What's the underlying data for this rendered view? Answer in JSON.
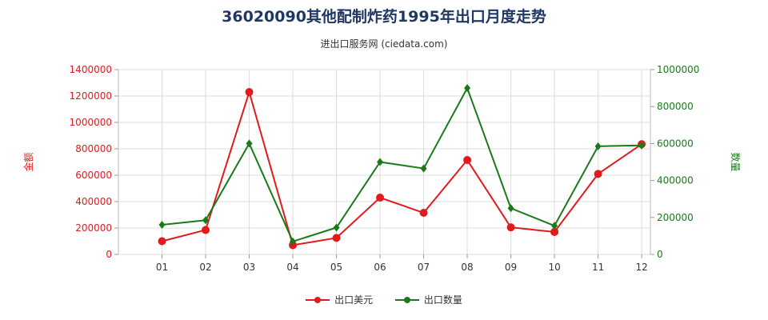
{
  "chart_data": {
    "type": "line",
    "title": "36020090其他配制炸药1995年出口月度走势",
    "subtitle": "进出口服务网 (ciedata.com)",
    "categories": [
      "01",
      "02",
      "03",
      "04",
      "05",
      "06",
      "07",
      "08",
      "09",
      "10",
      "11",
      "12"
    ],
    "y_left": {
      "label": "金额",
      "ylim": [
        0,
        1400000
      ],
      "ticks": [
        "0",
        "200000",
        "400000",
        "600000",
        "800000",
        "1000000",
        "1200000",
        "1400000"
      ],
      "tick_values": [
        0,
        200000,
        400000,
        600000,
        800000,
        1000000,
        1200000,
        1400000
      ],
      "color": "#e31a1c"
    },
    "y_right": {
      "label": "数量",
      "ylim": [
        0,
        1000000
      ],
      "ticks": [
        "0",
        "200000",
        "400000",
        "600000",
        "800000",
        "1000000"
      ],
      "tick_values": [
        0,
        200000,
        400000,
        600000,
        800000,
        1000000
      ],
      "color": "#1a7a1a"
    },
    "series": [
      {
        "name": "出口美元",
        "axis": "left",
        "color": "#e31a1c",
        "values": [
          100000,
          185000,
          1230000,
          70000,
          125000,
          430000,
          315000,
          715000,
          205000,
          170000,
          610000,
          835000
        ]
      },
      {
        "name": "出口数量",
        "axis": "right",
        "color": "#1a7a1a",
        "values": [
          160000,
          185000,
          600000,
          70000,
          145000,
          500000,
          465000,
          900000,
          250000,
          155000,
          585000,
          590000
        ]
      }
    ],
    "grid": true,
    "legend_position": "bottom-center"
  }
}
